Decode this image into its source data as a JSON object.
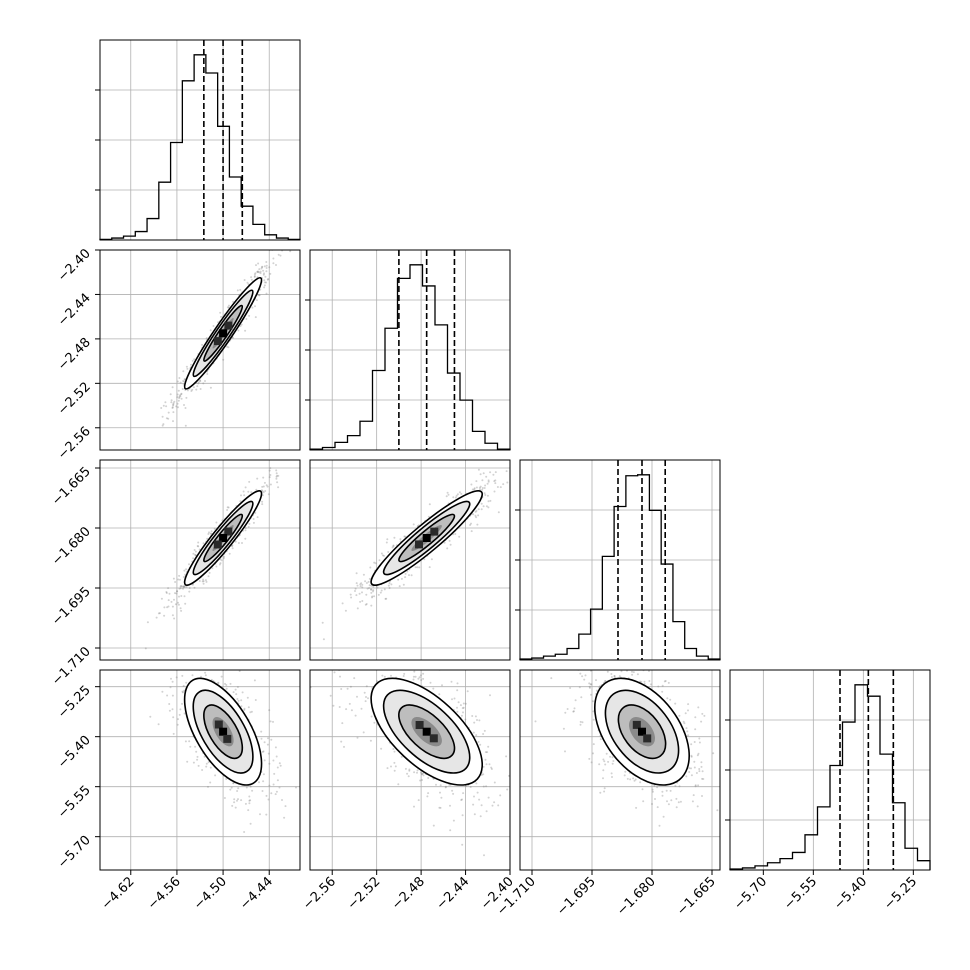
{
  "chart_data": {
    "type": "corner",
    "title": "",
    "grid": true,
    "parameters": [
      {
        "name": "",
        "range": [
          -4.66,
          -4.4
        ],
        "ticks": [
          -4.62,
          -4.56,
          -4.5,
          -4.44
        ],
        "tick_labels": [
          "−4.62",
          "−4.56",
          "−4.50",
          "−4.44"
        ],
        "median": -4.5,
        "quantiles": [
          -4.525,
          -4.5,
          -4.475
        ],
        "hist_counts": [
          1,
          3,
          6,
          13,
          33,
          89,
          150,
          245,
          285,
          257,
          175,
          97,
          52,
          24,
          8,
          3,
          1
        ]
      },
      {
        "name": "",
        "range": [
          -2.58,
          -2.4
        ],
        "ticks": [
          -2.56,
          -2.52,
          -2.48,
          -2.44,
          -2.4
        ],
        "tick_labels": [
          "−2.56",
          "−2.52",
          "−2.48",
          "−2.44",
          "−2.40"
        ],
        "median": -2.475,
        "quantiles": [
          -2.5,
          -2.475,
          -2.45
        ],
        "hist_counts": [
          1,
          3,
          9,
          17,
          34,
          94,
          144,
          203,
          219,
          194,
          148,
          91,
          59,
          22,
          8,
          1
        ]
      },
      {
        "name": "",
        "range": [
          -1.713,
          -1.663
        ],
        "ticks": [
          -1.71,
          -1.695,
          -1.68,
          -1.665
        ],
        "tick_labels": [
          "−1.710",
          "−1.695",
          "−1.680",
          "−1.665"
        ],
        "median": -1.6825,
        "quantiles": [
          -1.6885,
          -1.6825,
          -1.6767
        ],
        "hist_counts": [
          1,
          2,
          4,
          6,
          12,
          27,
          53,
          108,
          160,
          192,
          193,
          156,
          100,
          40,
          12,
          4,
          1
        ]
      },
      {
        "name": "",
        "range": [
          -5.8,
          -5.2
        ],
        "ticks": [
          -5.7,
          -5.55,
          -5.4,
          -5.25
        ],
        "tick_labels": [
          "−5.70",
          "−5.55",
          "−5.40",
          "−5.25"
        ],
        "median": -5.385,
        "quantiles": [
          -5.47,
          -5.385,
          -5.31
        ],
        "hist_counts": [
          1,
          2,
          4,
          7,
          11,
          17,
          34,
          61,
          101,
          143,
          179,
          168,
          112,
          65,
          21,
          9
        ]
      }
    ],
    "pairs": [
      {
        "x": 0,
        "y": 1,
        "correlation": 0.96
      },
      {
        "x": 0,
        "y": 2,
        "correlation": 0.94
      },
      {
        "x": 1,
        "y": 2,
        "correlation": 0.93
      },
      {
        "x": 0,
        "y": 3,
        "correlation": -0.6
      },
      {
        "x": 1,
        "y": 3,
        "correlation": -0.62
      },
      {
        "x": 2,
        "y": 3,
        "correlation": -0.45
      }
    ],
    "colors": {
      "line": "#000000",
      "grid": "#b0b0b0",
      "scatter": "#7f7f7f"
    }
  }
}
